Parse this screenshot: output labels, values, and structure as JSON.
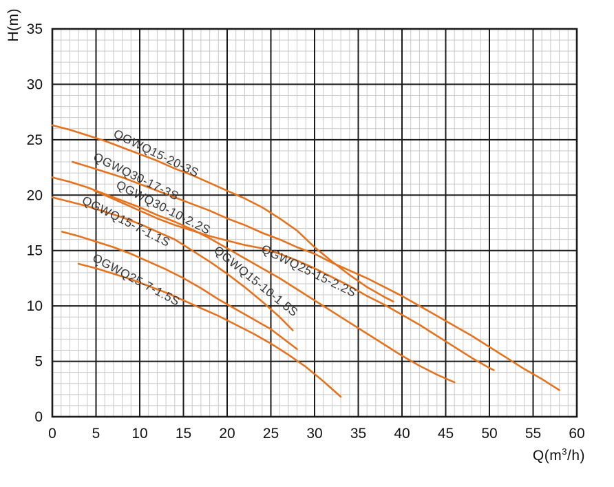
{
  "chart_data": {
    "type": "line",
    "title": "",
    "xlabel": "Q(m³/h)",
    "ylabel": "H(m)",
    "xlim": [
      0,
      60
    ],
    "ylim": [
      0,
      35
    ],
    "xticks": [
      0,
      5,
      10,
      15,
      20,
      25,
      30,
      35,
      40,
      45,
      50,
      55,
      60
    ],
    "yticks": [
      0,
      5,
      10,
      15,
      20,
      25,
      30,
      35
    ],
    "grid": "major-and-minor, minor step 1 on both axes",
    "legend_position": "labels rotated along curves",
    "line_color": "#e4731f",
    "major_grid_color": "#1b1b1b",
    "minor_grid_color": "#c9c9c9",
    "series": [
      {
        "name": "QGWQ15-20-3S",
        "points": [
          [
            0,
            26.3
          ],
          [
            2,
            25.9
          ],
          [
            4,
            25.4
          ],
          [
            6,
            24.9
          ],
          [
            8,
            24.3
          ],
          [
            10,
            23.7
          ],
          [
            12,
            23.1
          ],
          [
            14,
            22.4
          ],
          [
            16,
            21.8
          ],
          [
            18,
            21.1
          ],
          [
            20,
            20.4
          ],
          [
            22,
            19.7
          ],
          [
            24,
            18.9
          ],
          [
            26,
            17.9
          ],
          [
            28,
            16.8
          ],
          [
            30,
            15.3
          ],
          [
            32,
            14.0
          ],
          [
            34,
            12.8
          ],
          [
            36,
            11.7
          ],
          [
            38,
            10.8
          ],
          [
            39,
            10.4
          ]
        ],
        "label_q": 6.9,
        "label_h": 25.3,
        "label_angle": 26
      },
      {
        "name": "QGWQ30-17-3S",
        "points": [
          [
            2.3,
            23.0
          ],
          [
            4,
            22.6
          ],
          [
            6,
            22.1
          ],
          [
            8,
            21.6
          ],
          [
            10,
            21.0
          ],
          [
            12,
            20.4
          ],
          [
            14,
            19.8
          ],
          [
            16,
            19.2
          ],
          [
            18,
            18.6
          ],
          [
            20,
            17.9
          ],
          [
            22,
            17.3
          ],
          [
            24,
            16.6
          ],
          [
            26,
            16.0
          ],
          [
            28,
            15.3
          ],
          [
            30,
            14.7
          ],
          [
            32,
            13.9
          ],
          [
            34,
            13.2
          ],
          [
            36,
            12.5
          ],
          [
            38,
            11.7
          ],
          [
            40,
            10.9
          ],
          [
            42,
            10.0
          ],
          [
            44,
            9.1
          ],
          [
            46,
            8.2
          ],
          [
            48,
            7.3
          ],
          [
            50,
            6.3
          ],
          [
            52,
            5.3
          ],
          [
            54,
            4.3
          ],
          [
            56,
            3.4
          ],
          [
            58,
            2.4
          ]
        ],
        "label_q": 4.6,
        "label_h": 23.2,
        "label_angle": 26
      },
      {
        "name": "QGWQ30-10-2.2S",
        "points": [
          [
            0,
            21.6
          ],
          [
            2,
            21.2
          ],
          [
            4,
            20.7
          ],
          [
            6,
            20.1
          ],
          [
            8,
            19.5
          ],
          [
            10,
            18.9
          ],
          [
            12,
            18.2
          ],
          [
            14,
            17.6
          ],
          [
            16,
            16.9
          ],
          [
            18,
            16.1
          ],
          [
            20,
            15.2
          ],
          [
            22,
            14.3
          ],
          [
            24,
            13.4
          ],
          [
            26,
            12.5
          ],
          [
            28,
            11.5
          ],
          [
            30,
            10.5
          ],
          [
            32,
            9.5
          ],
          [
            34,
            8.5
          ],
          [
            36,
            7.5
          ],
          [
            38,
            6.5
          ],
          [
            40,
            5.5
          ],
          [
            42,
            4.6
          ],
          [
            44,
            3.8
          ],
          [
            46,
            3.1
          ]
        ],
        "label_q": 7.2,
        "label_h": 20.7,
        "label_angle": 27
      },
      {
        "name": "QGWQ25-15-2.2S",
        "points": [
          [
            4.8,
            20.4
          ],
          [
            6,
            20.0
          ],
          [
            8,
            19.3
          ],
          [
            10,
            18.6
          ],
          [
            12,
            17.9
          ],
          [
            14,
            17.3
          ],
          [
            16,
            16.8
          ],
          [
            18,
            16.3
          ],
          [
            20,
            15.9
          ],
          [
            22,
            15.5
          ],
          [
            24,
            15.2
          ],
          [
            26,
            14.7
          ],
          [
            28,
            14.1
          ],
          [
            30,
            13.4
          ],
          [
            32,
            12.6
          ],
          [
            34,
            11.8
          ],
          [
            36,
            10.9
          ],
          [
            38,
            10.1
          ],
          [
            40,
            9.2
          ],
          [
            42,
            8.3
          ],
          [
            44,
            7.3
          ],
          [
            46,
            6.3
          ],
          [
            48,
            5.3
          ],
          [
            50,
            4.4
          ],
          [
            50.5,
            4.2
          ]
        ],
        "label_q": 23.8,
        "label_h": 14.9,
        "label_angle": 26
      },
      {
        "name": "QGWQ15-7-1.1S",
        "points": [
          [
            0,
            19.8
          ],
          [
            2,
            19.4
          ],
          [
            4,
            19.0
          ],
          [
            6,
            18.5
          ],
          [
            8,
            18.0
          ],
          [
            10,
            17.4
          ],
          [
            12,
            16.7
          ],
          [
            14,
            16.0
          ],
          [
            15,
            15.5
          ],
          [
            16,
            15.0
          ],
          [
            18,
            14.0
          ],
          [
            20,
            12.9
          ],
          [
            22,
            11.7
          ],
          [
            24,
            10.4
          ],
          [
            26,
            9.0
          ],
          [
            27.5,
            7.8
          ]
        ],
        "label_q": 3.3,
        "label_h": 19.3,
        "label_angle": 27
      },
      {
        "name": "QGWQ15-10-1.5S",
        "points": [
          [
            1.1,
            16.7
          ],
          [
            3,
            16.3
          ],
          [
            5,
            15.8
          ],
          [
            7,
            15.3
          ],
          [
            9,
            14.7
          ],
          [
            11,
            14.0
          ],
          [
            13,
            13.3
          ],
          [
            15,
            12.5
          ],
          [
            17,
            11.6
          ],
          [
            19,
            10.6
          ],
          [
            21,
            9.7
          ],
          [
            23,
            8.8
          ],
          [
            25,
            7.9
          ],
          [
            26.5,
            7.0
          ],
          [
            28,
            6.1
          ]
        ],
        "label_q": 18.4,
        "label_h": 14.9,
        "label_angle": 39
      },
      {
        "name": "QGWQ25-7-1.5S",
        "points": [
          [
            3,
            13.8
          ],
          [
            5,
            13.4
          ],
          [
            7,
            12.9
          ],
          [
            9,
            12.4
          ],
          [
            11,
            11.8
          ],
          [
            13,
            11.2
          ],
          [
            15,
            10.5
          ],
          [
            17,
            9.8
          ],
          [
            19,
            9.1
          ],
          [
            21,
            8.3
          ],
          [
            23,
            7.5
          ],
          [
            25,
            6.6
          ],
          [
            27,
            5.6
          ],
          [
            29,
            4.5
          ],
          [
            31,
            3.2
          ],
          [
            33,
            1.8
          ]
        ],
        "label_q": 4.5,
        "label_h": 14.1,
        "label_angle": 28
      }
    ]
  }
}
